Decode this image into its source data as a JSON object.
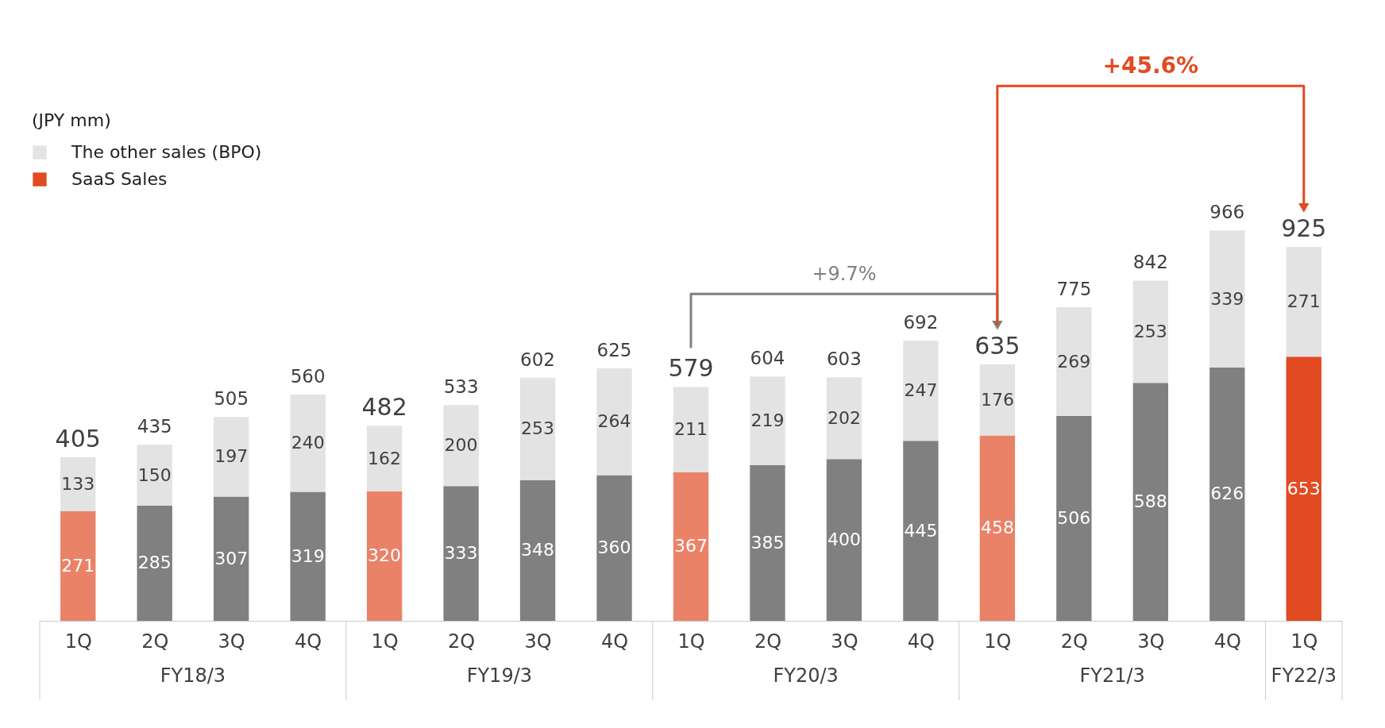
{
  "chart_data": {
    "type": "bar",
    "stacked": true,
    "legend": "top left",
    "data_labels": true,
    "categories": [
      "1Q",
      "2Q",
      "3Q",
      "4Q",
      "1Q",
      "2Q",
      "3Q",
      "4Q",
      "1Q",
      "2Q",
      "3Q",
      "4Q",
      "1Q",
      "2Q",
      "3Q",
      "4Q",
      "1Q"
    ],
    "series": [
      {
        "name": "SaaS Sales",
        "color": "#e24a22",
        "colors": [
          "#ea8268",
          "#808080",
          "#808080",
          "#808080",
          "#ea8268",
          "#808080",
          "#808080",
          "#808080",
          "#ea8268",
          "#808080",
          "#808080",
          "#808080",
          "#ea8268",
          "#808080",
          "#808080",
          "#808080",
          "#e24a22"
        ],
        "values": [
          271,
          285,
          307,
          319,
          320,
          333,
          348,
          360,
          367,
          385,
          400,
          445,
          458,
          506,
          588,
          626,
          653
        ]
      },
      {
        "name": "The other sales (BPO)",
        "color": "#e3e3e3",
        "values": [
          133,
          150,
          197,
          240,
          162,
          200,
          253,
          264,
          211,
          219,
          202,
          247,
          176,
          269,
          253,
          339,
          271
        ]
      }
    ],
    "totals": [
      "405",
      "435",
      "505",
      "560",
      "482",
      "533",
      "602",
      "625",
      "579",
      "604",
      "603",
      "692",
      "635",
      "775",
      "842",
      "966",
      "925"
    ],
    "annotations": [
      "(JPY mm)",
      "FY18/3",
      "FY19/3",
      "FY20/3",
      "FY21/3",
      "FY22/3",
      "+9.7%",
      "+45.6%"
    ]
  }
}
